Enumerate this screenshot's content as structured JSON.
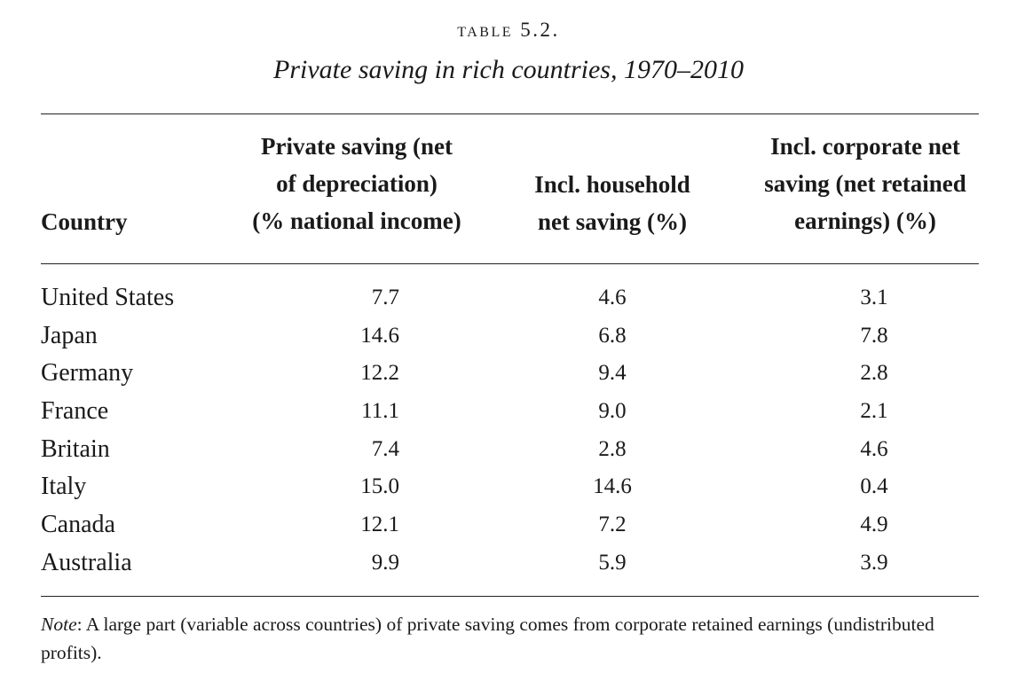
{
  "table": {
    "label": "TABLE 5.2.",
    "title": "Private saving in rich countries, 1970–2010",
    "headers": {
      "country": "Country",
      "private": [
        "Private saving (net",
        "of depreciation)",
        "(% national income)"
      ],
      "household": [
        "Incl. household",
        "net saving (%)"
      ],
      "corporate": [
        "Incl. corporate net",
        "saving (net retained",
        "earnings) (%)"
      ]
    },
    "rows": [
      {
        "country": "United States",
        "private": "7.7",
        "household": "4.6",
        "corporate": "3.1"
      },
      {
        "country": "Japan",
        "private": "14.6",
        "household": "6.8",
        "corporate": "7.8"
      },
      {
        "country": "Germany",
        "private": "12.2",
        "household": "9.4",
        "corporate": "2.8"
      },
      {
        "country": "France",
        "private": "11.1",
        "household": "9.0",
        "corporate": "2.1"
      },
      {
        "country": "Britain",
        "private": "7.4",
        "household": "2.8",
        "corporate": "4.6"
      },
      {
        "country": "Italy",
        "private": "15.0",
        "household": "14.6",
        "corporate": "0.4"
      },
      {
        "country": "Canada",
        "private": "12.1",
        "household": "7.2",
        "corporate": "4.9"
      },
      {
        "country": "Australia",
        "private": "9.9",
        "household": "5.9",
        "corporate": "3.9"
      }
    ],
    "note": {
      "label": "Note",
      "text": ": A large part (variable across countries) of private saving comes from corporate retained earnings (undistributed profits)."
    }
  }
}
